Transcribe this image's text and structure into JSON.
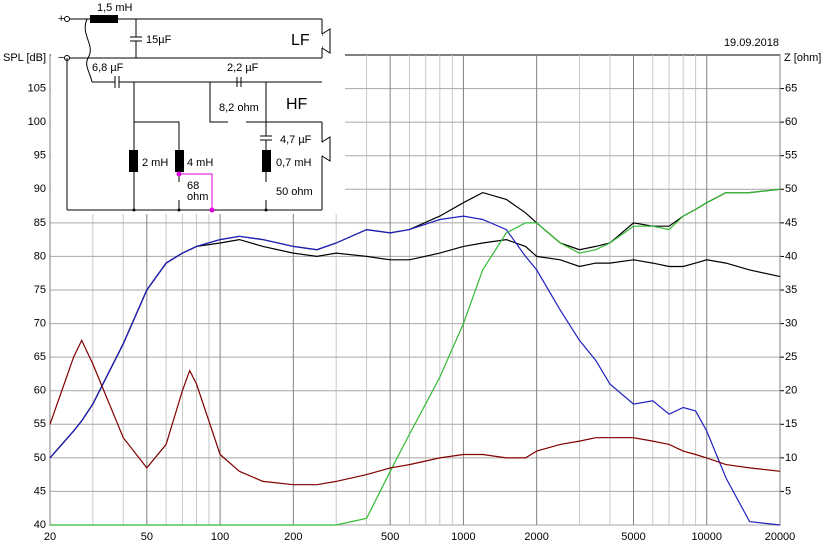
{
  "chart_data": {
    "type": "line",
    "y_label": "SPL [dB]",
    "y2_label": "Z [ohm]",
    "date": "19.09.2018",
    "x": [
      20,
      25,
      27,
      30,
      40,
      50,
      60,
      70,
      75,
      80,
      100,
      120,
      150,
      200,
      250,
      300,
      400,
      500,
      600,
      800,
      1000,
      1200,
      1500,
      1800,
      2000,
      2500,
      3000,
      3500,
      4000,
      5000,
      6000,
      7000,
      8000,
      9000,
      10000,
      12000,
      15000,
      20000
    ],
    "xlim": [
      20,
      20000
    ],
    "xticks": [
      20,
      50,
      100,
      200,
      500,
      1000,
      2000,
      5000,
      10000,
      20000
    ],
    "x_minor_ticks": [
      30,
      40,
      60,
      70,
      80,
      90,
      300,
      400,
      600,
      700,
      800,
      900,
      3000,
      4000,
      6000,
      7000,
      8000,
      9000
    ],
    "x_log": true,
    "ylim": [
      40,
      110
    ],
    "yticks": [
      40,
      45,
      50,
      55,
      60,
      65,
      70,
      75,
      80,
      85,
      90,
      95,
      100,
      105
    ],
    "y2lim": [
      0,
      70
    ],
    "y2ticks": [
      5,
      10,
      15,
      20,
      25,
      30,
      35,
      40,
      45,
      50,
      55,
      60,
      65
    ],
    "grid": true,
    "series": [
      {
        "color": "#000000",
        "values": [
          50,
          54,
          55.5,
          58,
          67,
          75,
          79,
          80.5,
          81,
          81.5,
          82.5,
          83,
          82.5,
          81.5,
          81,
          82,
          84,
          83.5,
          84,
          86,
          88,
          89.5,
          88.5,
          86.5,
          85,
          82,
          81,
          81.5,
          82,
          85,
          84.5,
          84.5,
          86,
          87,
          88,
          89.5,
          89.5,
          90
        ]
      },
      {
        "color": "#000000",
        "values": [
          50,
          54,
          55.5,
          58,
          67,
          75,
          79,
          80.5,
          81,
          81.5,
          82,
          82.5,
          81.5,
          80.5,
          80,
          80.5,
          80,
          79.5,
          79.5,
          80.5,
          81.5,
          82,
          82.5,
          81.5,
          80,
          79.5,
          78.5,
          79,
          79,
          79.5,
          79,
          78.5,
          78.5,
          79,
          79.5,
          79,
          78,
          77
        ]
      },
      {
        "color": "#2020c0",
        "values": [
          50,
          54,
          55.5,
          58,
          67,
          75,
          79,
          80.5,
          81,
          81.5,
          82.5,
          83,
          82.5,
          81.5,
          81,
          82,
          84,
          83.5,
          84,
          85.5,
          86,
          85.5,
          84,
          80,
          78,
          72,
          67.5,
          64.5,
          61,
          58,
          58.5,
          56.5,
          57.5,
          57,
          54,
          47,
          40.5,
          40
        ]
      },
      {
        "color": "#33bb33",
        "values": [
          40,
          40,
          40,
          40,
          40,
          40,
          40,
          40,
          40,
          40,
          40,
          40,
          40,
          40,
          40,
          40,
          41,
          48,
          53.5,
          62,
          70,
          78,
          83.5,
          85,
          85,
          82,
          80.5,
          81,
          82,
          84.5,
          84.5,
          84,
          86,
          87,
          88,
          89.5,
          89.5,
          90
        ]
      },
      {
        "color": "#800000",
        "axis": "y2",
        "values": [
          15,
          25,
          27.5,
          24,
          13,
          8.5,
          12,
          20,
          23,
          21,
          10.5,
          8,
          6.5,
          6,
          6,
          6.5,
          7.5,
          8.5,
          9,
          10,
          10.5,
          10.5,
          10,
          10,
          11,
          12,
          12.5,
          13,
          13,
          13,
          12.5,
          12,
          11,
          10.5,
          10,
          9,
          8.5,
          8
        ]
      }
    ]
  },
  "schematic": {
    "plus": "+",
    "minus": "−",
    "l1": "1,5 mH",
    "c1": "15µF",
    "lf": "LF",
    "c2": "6,8 µF",
    "c3": "2,2 µF",
    "r1": "8,2 ohm",
    "hf": "HF",
    "c4": "4,7 µF",
    "l2": "0,7 mH",
    "l3": "2 mH",
    "l4": "4 mH",
    "r2_value": "68",
    "r2_unit": "ohm",
    "r3": "50 ohm"
  }
}
